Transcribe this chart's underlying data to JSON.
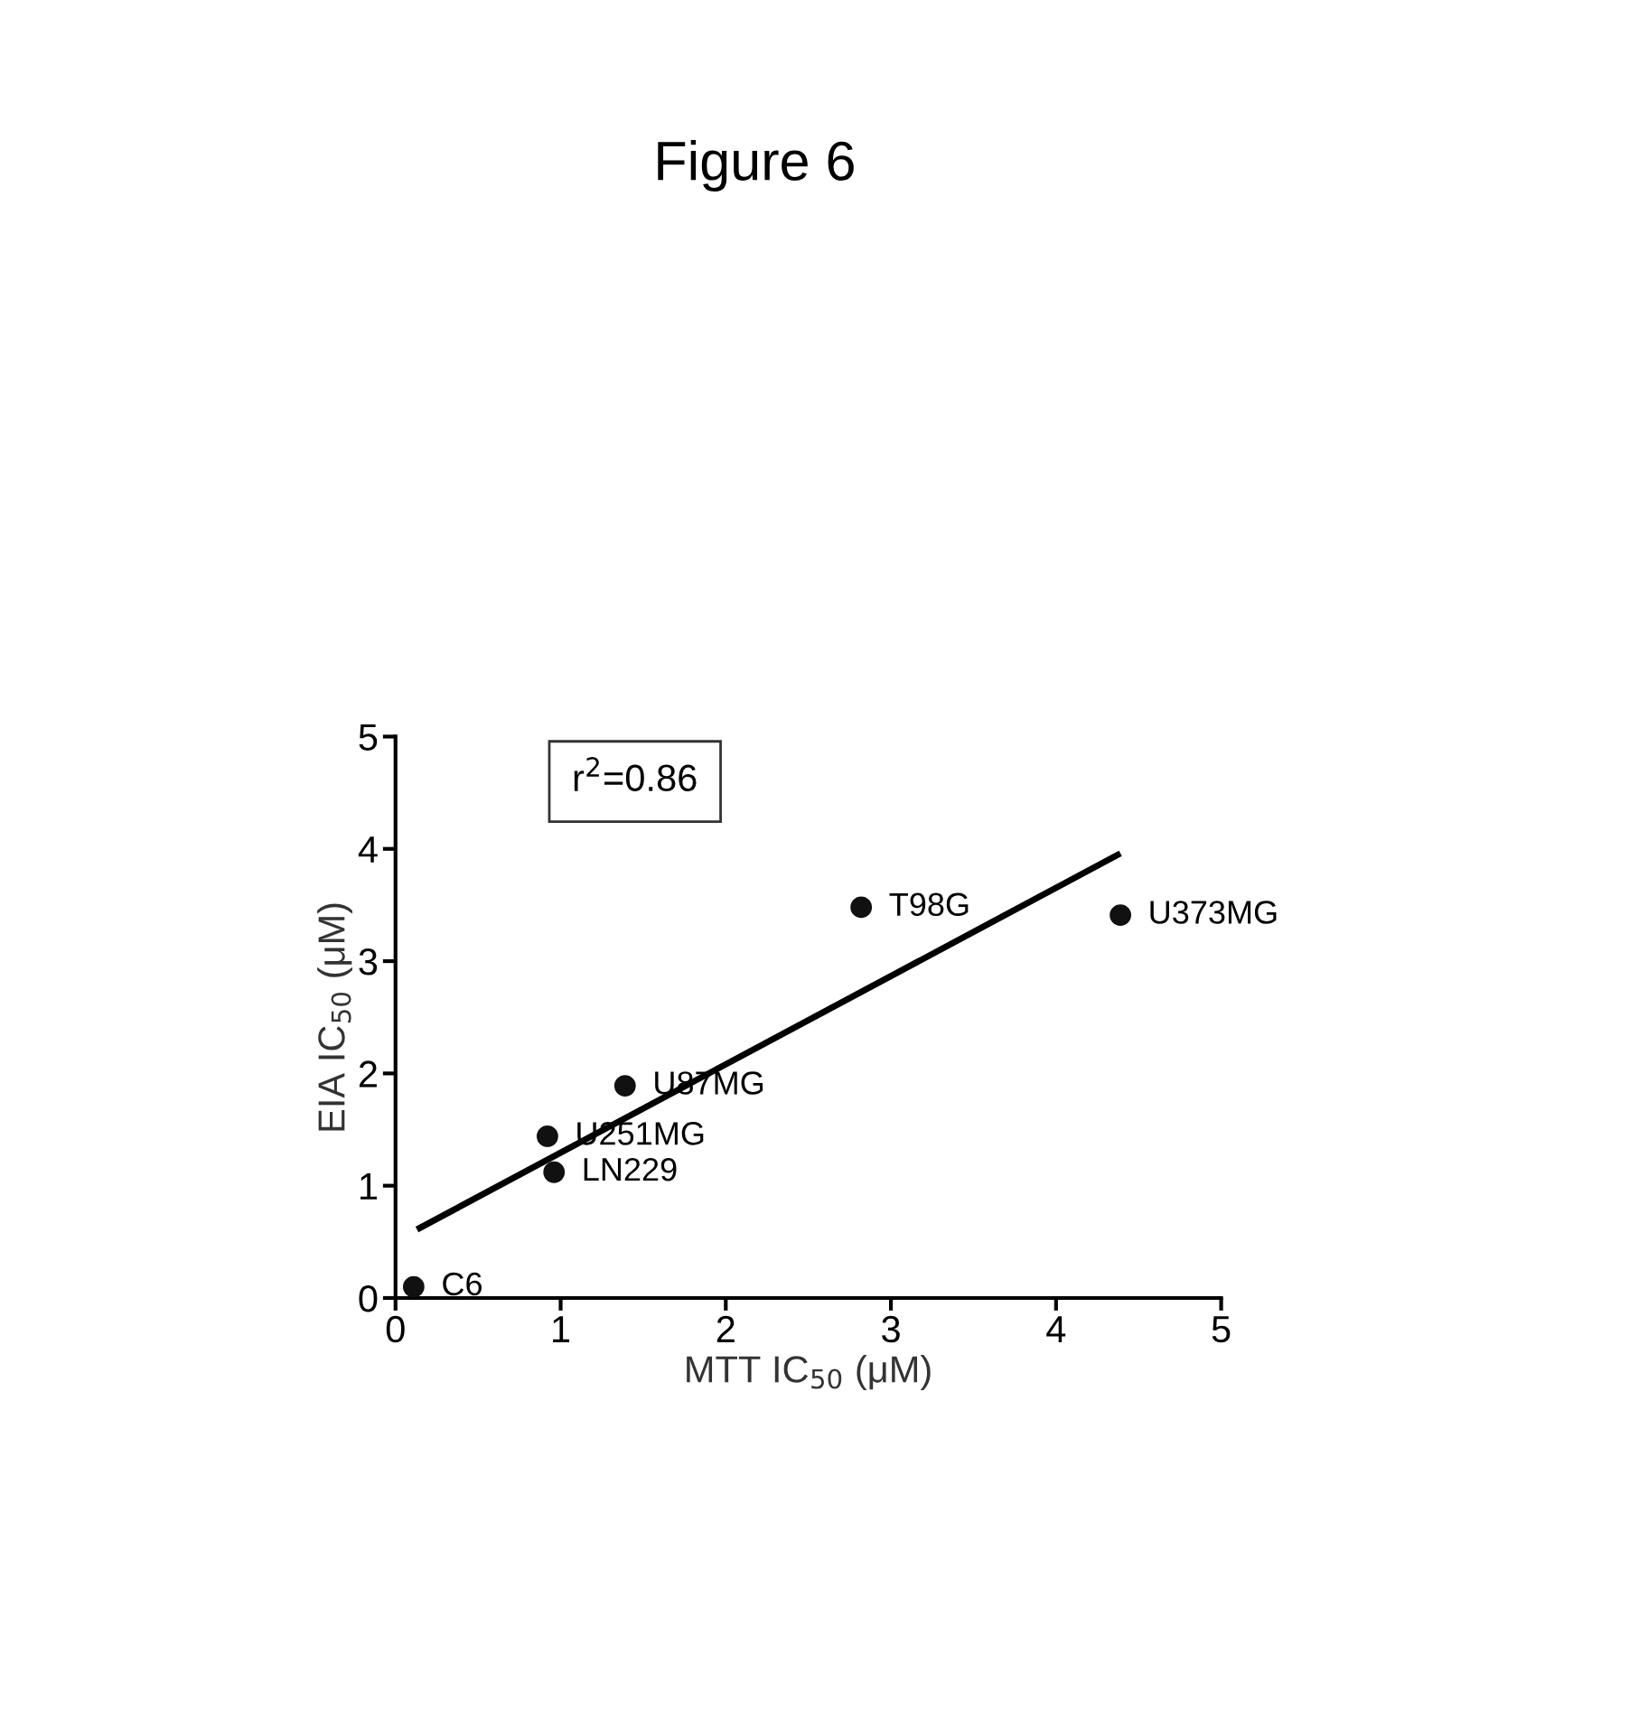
{
  "chart_data": {
    "type": "scatter",
    "title": "Figure 6",
    "xlabel": "MTT IC$_{50}$ (μM)",
    "ylabel": "EIA IC$_{50}$ (μM)",
    "series": [
      {
        "color": "#111111",
        "marker": "circle",
        "x": [
          0.11,
          0.92,
          0.96,
          1.39,
          2.82,
          4.39
        ],
        "values": [
          0.1,
          1.44,
          1.12,
          1.89,
          3.48,
          3.41
        ]
      },
      {
        "type": "line",
        "color": "#000000",
        "line_style": "solid",
        "x": [
          0.13,
          4.39
        ],
        "values": [
          0.61,
          3.96
        ]
      }
    ],
    "annotations": [
      {
        "text": "C6",
        "x": 0.11,
        "y": 0.1
      },
      {
        "text": "U251MG",
        "x": 0.92,
        "y": 1.44
      },
      {
        "text": "LN229",
        "x": 0.96,
        "y": 1.12
      },
      {
        "text": "U87MG",
        "x": 1.39,
        "y": 1.89
      },
      {
        "text": "T98G",
        "x": 2.82,
        "y": 3.48
      },
      {
        "text": "U373MG",
        "x": 4.39,
        "y": 3.41
      },
      "r$^{2}$=0.86"
    ],
    "xlim": [
      0,
      5
    ],
    "ylim": [
      0,
      5
    ],
    "xticks": [
      0,
      1,
      2,
      3,
      4,
      5
    ],
    "yticks": [
      0,
      1,
      2,
      3,
      4,
      5
    ],
    "grid": false,
    "legend": false
  }
}
